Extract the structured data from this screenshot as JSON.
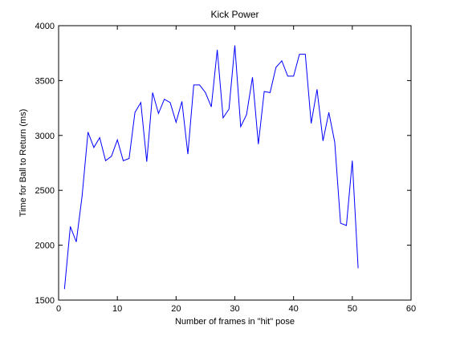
{
  "chart_data": {
    "type": "line",
    "title": "Kick Power",
    "xlabel": "Number of frames in \"hit\" pose",
    "ylabel": "Time for Ball to Return (ms)",
    "xlim": [
      0,
      60
    ],
    "ylim": [
      1500,
      4000
    ],
    "xticks": [
      0,
      10,
      20,
      30,
      40,
      50,
      60
    ],
    "yticks": [
      1500,
      2000,
      2500,
      3000,
      3500,
      4000
    ],
    "xtick_labels": [
      "0",
      "10",
      "20",
      "30",
      "40",
      "50",
      "60"
    ],
    "ytick_labels": [
      "1500",
      "2000",
      "2500",
      "3000",
      "3500",
      "4000"
    ],
    "grid": false,
    "line_color": "#0000ff",
    "series": [
      {
        "x": [
          1,
          2,
          3,
          4,
          5,
          6,
          7,
          8,
          9,
          10,
          11,
          12,
          13,
          14,
          15,
          16,
          17,
          18,
          19,
          20,
          21,
          22,
          23,
          24,
          25,
          26,
          27,
          28,
          29,
          30,
          31,
          32,
          33,
          34,
          35,
          36,
          37,
          38,
          39,
          40,
          41,
          42,
          43,
          44,
          45,
          46,
          47,
          48,
          49,
          50,
          51
        ],
        "values": [
          1600,
          2170,
          2030,
          2450,
          3030,
          2890,
          2980,
          2770,
          2810,
          2960,
          2770,
          2790,
          3210,
          3300,
          2760,
          3390,
          3200,
          3330,
          3300,
          3120,
          3310,
          2830,
          3460,
          3460,
          3390,
          3260,
          3780,
          3160,
          3240,
          3820,
          3080,
          3190,
          3530,
          2920,
          3400,
          3390,
          3620,
          3680,
          3540,
          3540,
          3740,
          3740,
          3110,
          3420,
          2950,
          3210,
          2940,
          2200,
          2180,
          2770,
          1790
        ]
      }
    ]
  }
}
